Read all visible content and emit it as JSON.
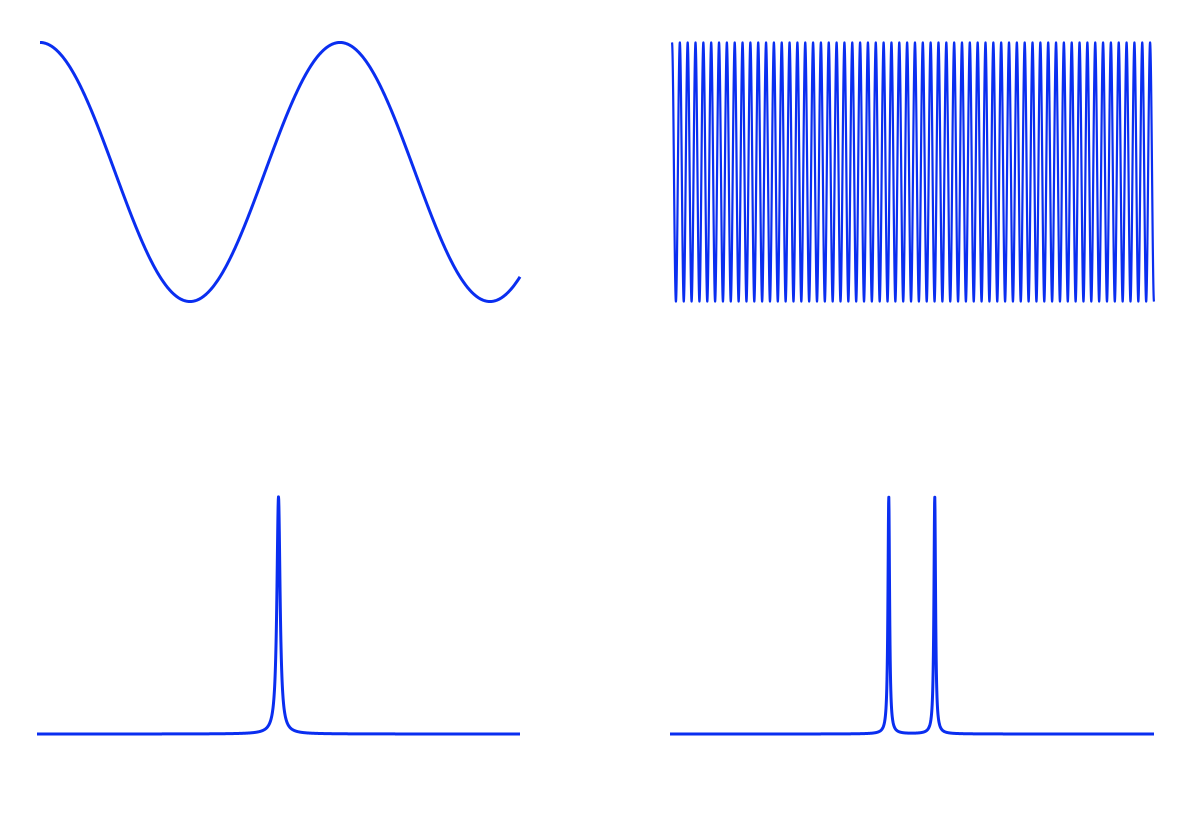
{
  "style": {
    "line_color": "#0a2ef0"
  },
  "chart_data": [
    {
      "type": "line",
      "name_hint": "low-frequency-signal",
      "function": "cosine",
      "x_range": [
        0,
        1
      ],
      "cycles": 1.6,
      "amplitude": 1,
      "ylim": [
        -1.05,
        1.05
      ],
      "grid": false,
      "axes": false
    },
    {
      "type": "line",
      "name_hint": "high-frequency-signal",
      "function": "cosine",
      "x_range": [
        0,
        1
      ],
      "cycles": 61.5,
      "amplitude": 1,
      "ylim": [
        -1.05,
        1.05
      ],
      "grid": false,
      "axes": false
    },
    {
      "type": "line",
      "name_hint": "spectrum-single-peak",
      "peaks": [
        0.5
      ],
      "peak_height": 1,
      "width": 0.004,
      "x_range": [
        0,
        1
      ],
      "ylim": [
        0,
        1.05
      ],
      "grid": false,
      "axes": false
    },
    {
      "type": "line",
      "name_hint": "spectrum-two-peaks",
      "peaks": [
        0.452,
        0.547
      ],
      "peak_height": 1,
      "width": 0.002,
      "x_range": [
        0,
        1
      ],
      "ylim": [
        0,
        1.05
      ],
      "grid": false,
      "axes": false
    }
  ]
}
